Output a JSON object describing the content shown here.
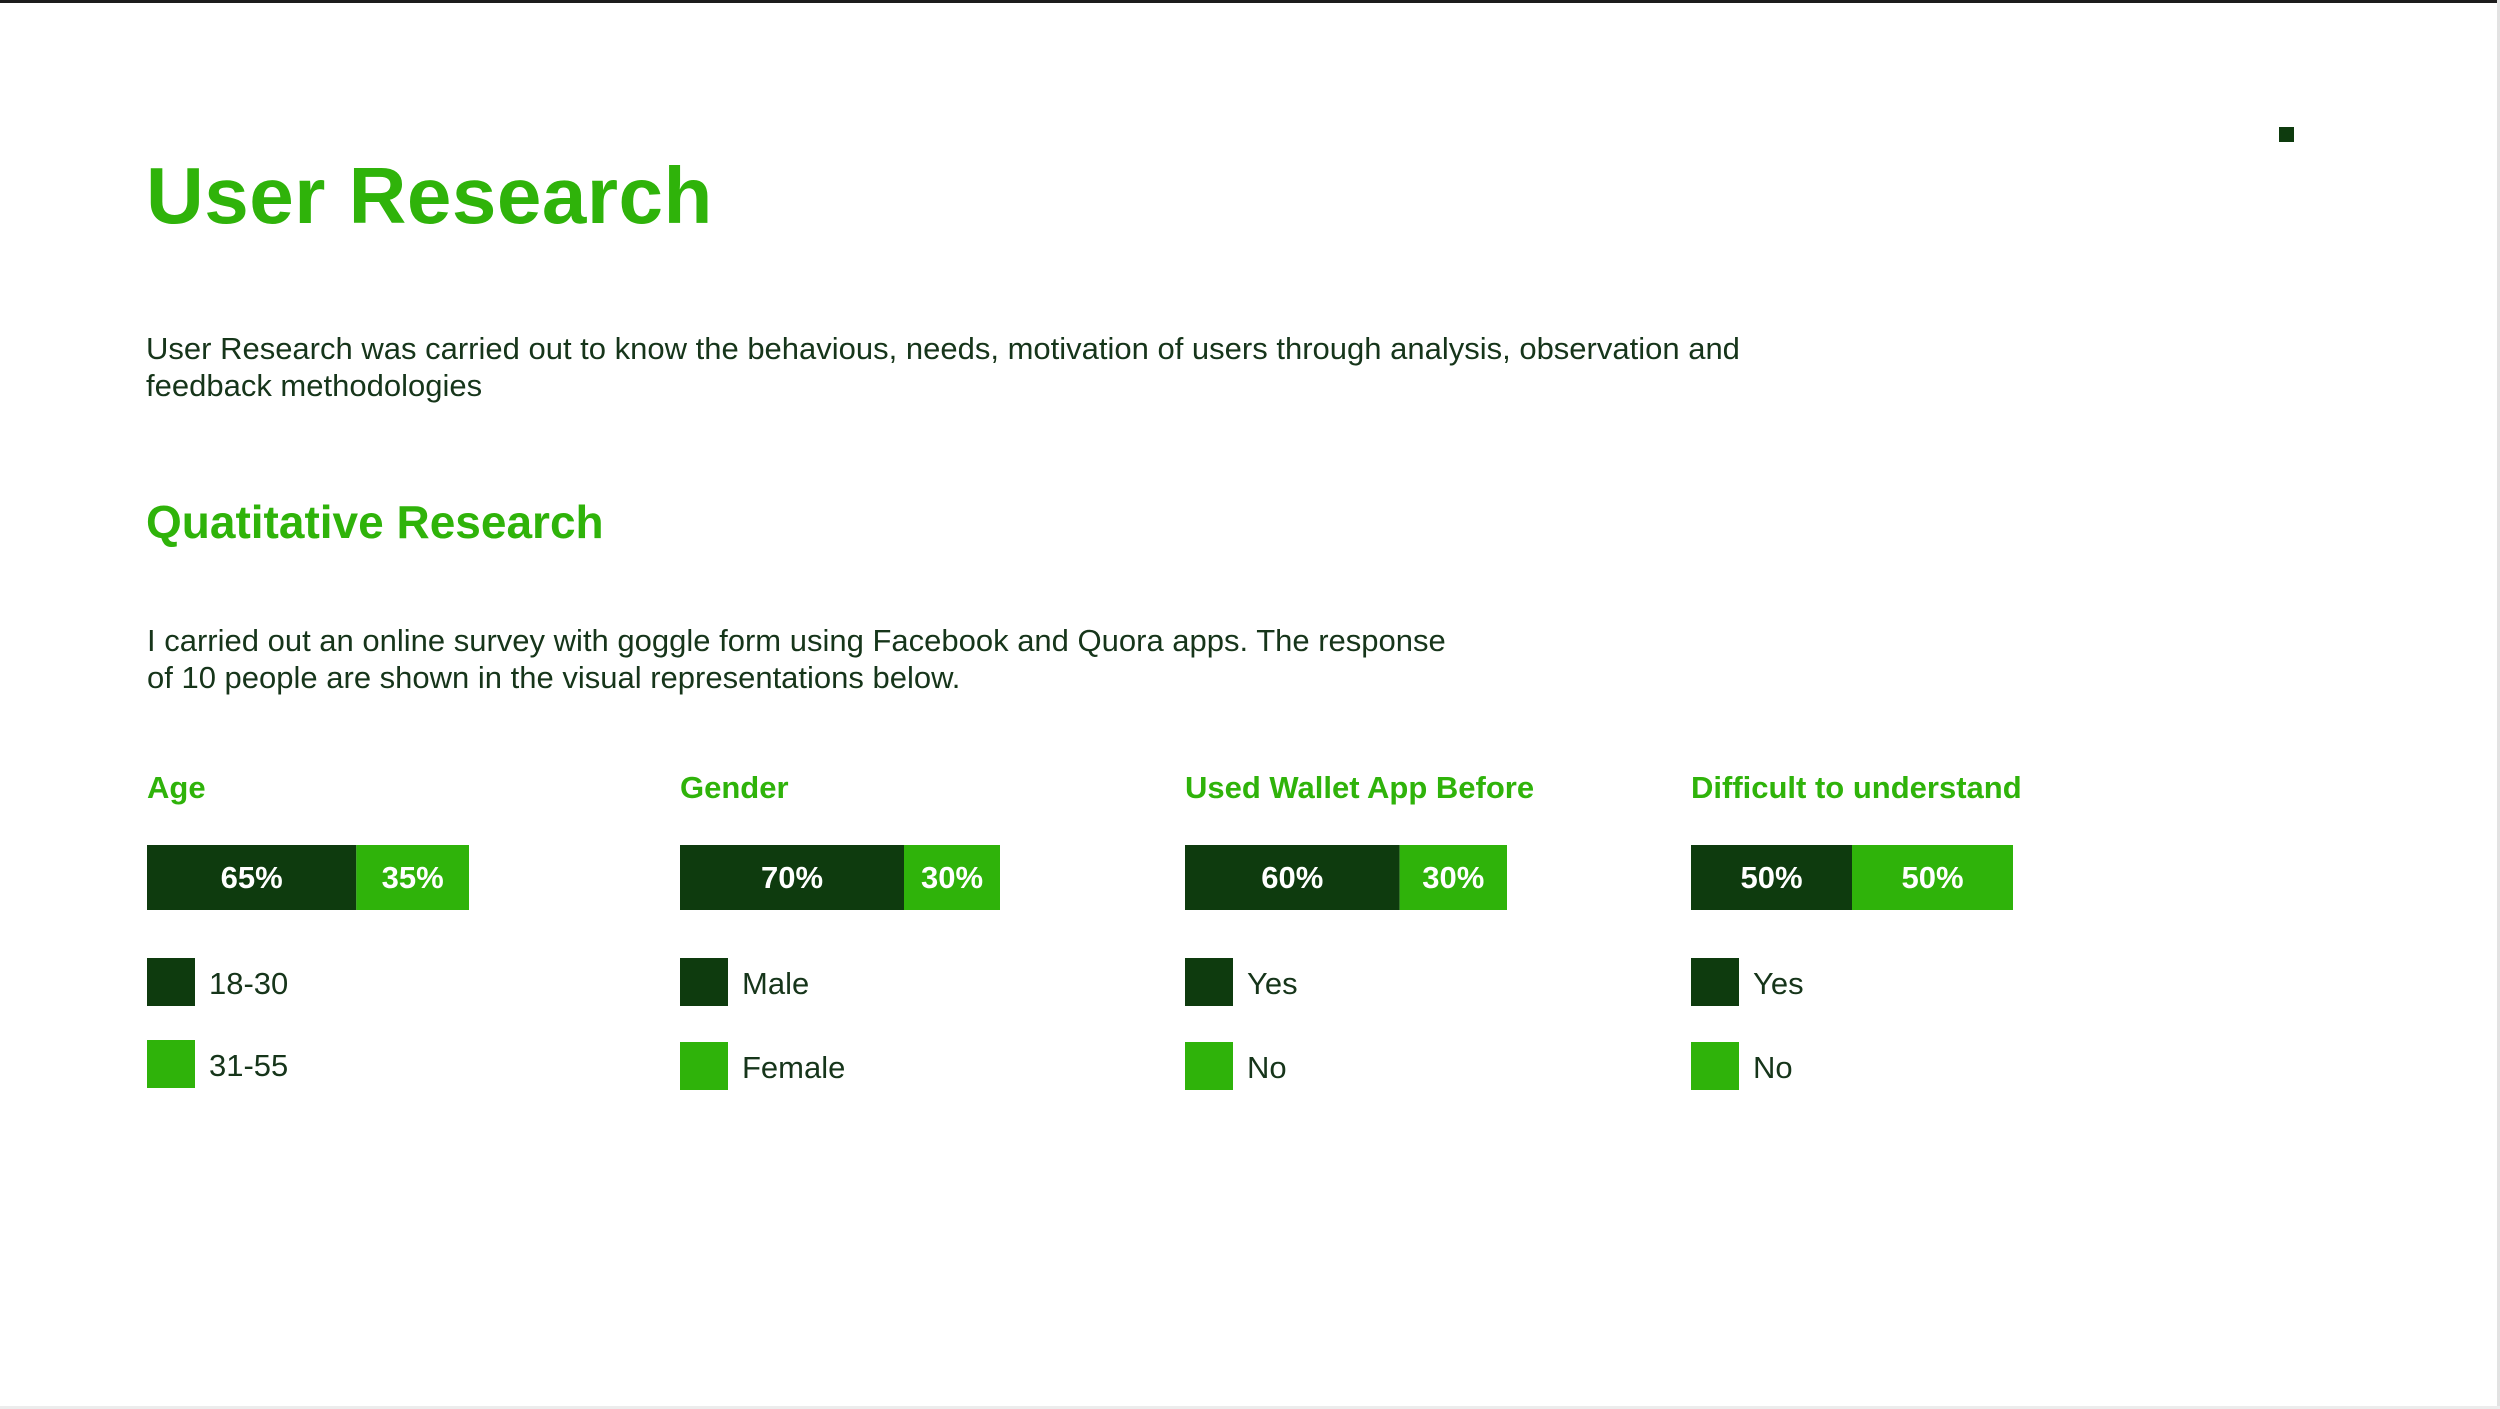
{
  "header": {
    "title": "User Research",
    "intro": "User Research was carried out to know the behavious, needs, motivation of users through analysis, observation and feedback methodologies"
  },
  "section": {
    "title": "Quatitative Research",
    "text": "I carried out an online survey with goggle form using Facebook and Quora apps. The response of 10 people are shown in the visual representations below."
  },
  "colors": {
    "dark": "#0e3b0e",
    "light": "#2fb30a",
    "bar_text": "#ffffff"
  },
  "chart_data": [
    {
      "type": "bar",
      "title": "Age",
      "series": [
        {
          "name": "18-30",
          "value": 65,
          "label": "65%"
        },
        {
          "name": "31-55",
          "value": 35,
          "label": "35%"
        }
      ]
    },
    {
      "type": "bar",
      "title": "Gender",
      "series": [
        {
          "name": "Male",
          "value": 70,
          "label": "70%"
        },
        {
          "name": "Female",
          "value": 30,
          "label": "30%"
        }
      ]
    },
    {
      "type": "bar",
      "title": "Used Wallet App Before",
      "series": [
        {
          "name": "Yes",
          "value": 60,
          "label": "60%"
        },
        {
          "name": "No",
          "value": 30,
          "label": "30%"
        }
      ]
    },
    {
      "type": "bar",
      "title": "Difficult to understand",
      "series": [
        {
          "name": "Yes",
          "value": 50,
          "label": "50%"
        },
        {
          "name": "No",
          "value": 50,
          "label": "50%"
        }
      ]
    }
  ]
}
